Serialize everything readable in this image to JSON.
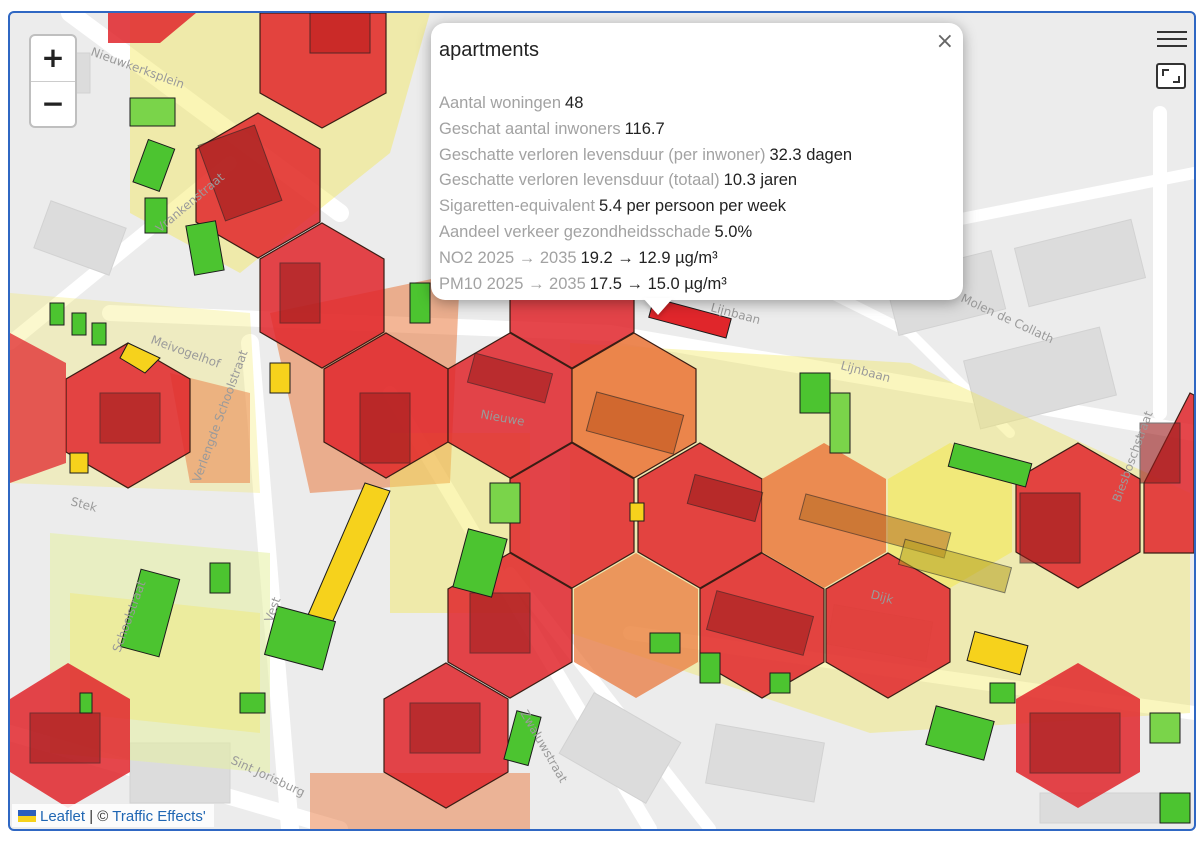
{
  "map": {
    "road_labels": [
      "Nieuwkerksplein",
      "Meivogelhof",
      "Stek",
      "Lijnbaan",
      "Lijnbaan",
      "Molen de Collath",
      "Biesboschstraat",
      "Schoolstraat",
      "Verlengde Schoolstraat",
      "Vest",
      "Sint Jorisburg",
      "Vrankenstraat",
      "Zwaluwstraat",
      "Dijk",
      "Nieuwe"
    ],
    "colors": {
      "red": "#e0262b",
      "orange": "#ea7a3f",
      "yellow": "#f3e85c",
      "light_green": "#9bd55a",
      "green": "#4cc430",
      "background": "#ececec"
    }
  },
  "zoom": {
    "in_label": "+",
    "out_label": "−"
  },
  "popup": {
    "title": "apartments",
    "close_label": "×",
    "rows": [
      {
        "label": "Aantal woningen",
        "value": "48"
      },
      {
        "label": "Geschat aantal inwoners",
        "value": "116.7"
      },
      {
        "label": "Geschatte verloren levensduur (per inwoner)",
        "value": "32.3 dagen"
      },
      {
        "label": "Geschatte verloren levensduur (totaal)",
        "value": "10.3 jaren"
      },
      {
        "label": "Sigaretten-equivalent",
        "value": "5.4 per persoon per week"
      },
      {
        "label": "Aandeel verkeer gezondheidsschade",
        "value": "5.0%"
      },
      {
        "label": "NO2 2025 → 2035",
        "value": "19.2 → 12.9 µg/m³"
      },
      {
        "label": "PM10 2025 → 2035",
        "value": "17.5 → 15.0 µg/m³"
      }
    ]
  },
  "attribution": {
    "leaflet": "Leaflet",
    "separator": "|",
    "copyright": "©",
    "source": "Traffic Effects'"
  }
}
